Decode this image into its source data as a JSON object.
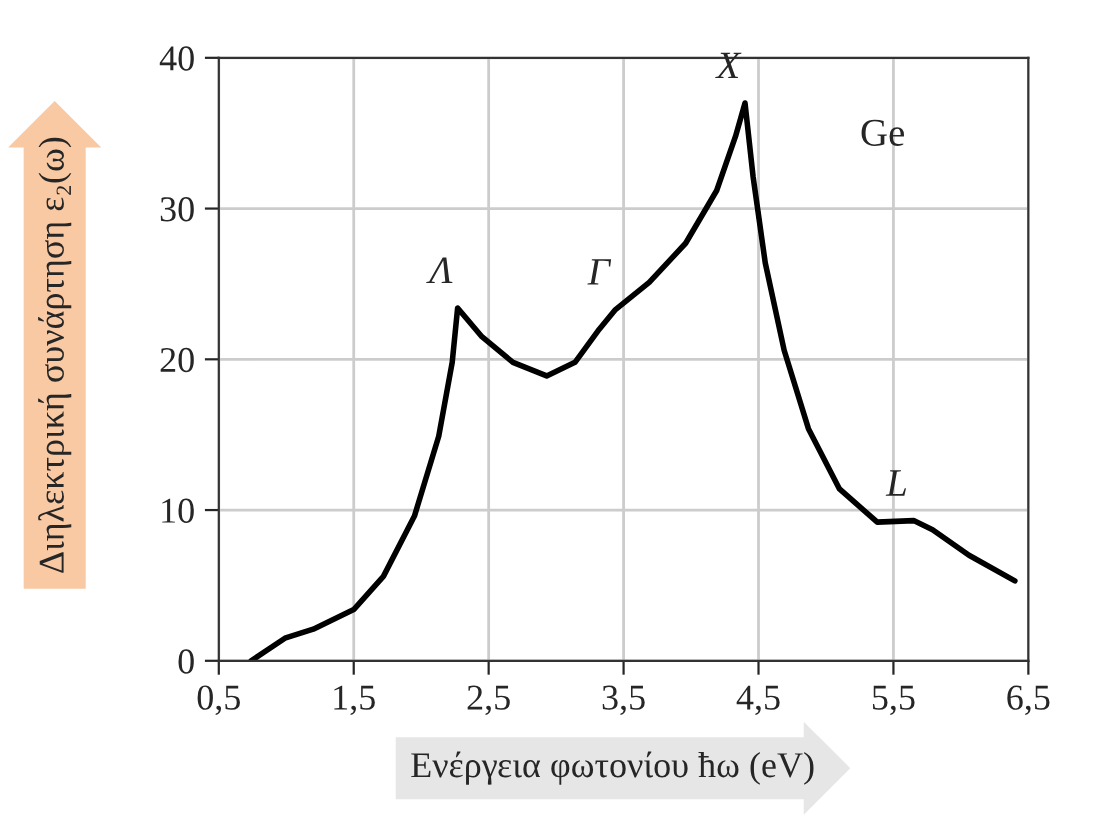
{
  "chart_data": {
    "type": "line",
    "xlabel": "Ενέργεια φωτονίου ħω (eV)",
    "ylabel": "Διηλεκτρική συνάρτηση ε₂(ω)",
    "x": [
      0.74,
      0.99,
      1.2,
      1.5,
      1.72,
      1.95,
      2.13,
      2.23,
      2.27,
      2.45,
      2.68,
      2.93,
      3.14,
      3.32,
      3.44,
      3.69,
      3.96,
      4.19,
      4.33,
      4.4,
      4.46,
      4.55,
      4.69,
      4.87,
      5.1,
      5.38,
      5.65,
      5.79,
      6.06,
      6.4
    ],
    "series": [
      {
        "color": "#000000",
        "values": [
          0,
          1.5,
          2.1,
          3.4,
          5.6,
          9.6,
          14.9,
          19.8,
          23.4,
          21.5,
          19.8,
          18.9,
          19.8,
          22.0,
          23.3,
          25.1,
          27.7,
          31.2,
          34.8,
          37.0,
          32.1,
          26.4,
          20.6,
          15.4,
          11.4,
          9.2,
          9.3,
          8.7,
          7.0,
          5.3
        ]
      }
    ],
    "xlim": [
      0.5,
      6.5
    ],
    "ylim": [
      0,
      40
    ],
    "xticks": [
      {
        "value": 0.5,
        "label": "0,5"
      },
      {
        "value": 1.5,
        "label": "1,5"
      },
      {
        "value": 2.5,
        "label": "2,5"
      },
      {
        "value": 3.5,
        "label": "3,5"
      },
      {
        "value": 4.5,
        "label": "4,5"
      },
      {
        "value": 5.5,
        "label": "5,5"
      },
      {
        "value": 6.5,
        "label": "6,5"
      }
    ],
    "yticks": [
      0,
      10,
      20,
      30,
      40
    ],
    "annotations": [
      {
        "text": "Λ",
        "x": 2.27,
        "y": 23.4
      },
      {
        "text": "Γ",
        "x": 3.44,
        "y": 23.3
      },
      {
        "text": "X",
        "x": 4.4,
        "y": 37.0
      },
      {
        "text": "L",
        "x": 5.65,
        "y": 9.3
      },
      "Ge"
    ],
    "grid": true,
    "marker": "none",
    "line_style": "solid"
  }
}
